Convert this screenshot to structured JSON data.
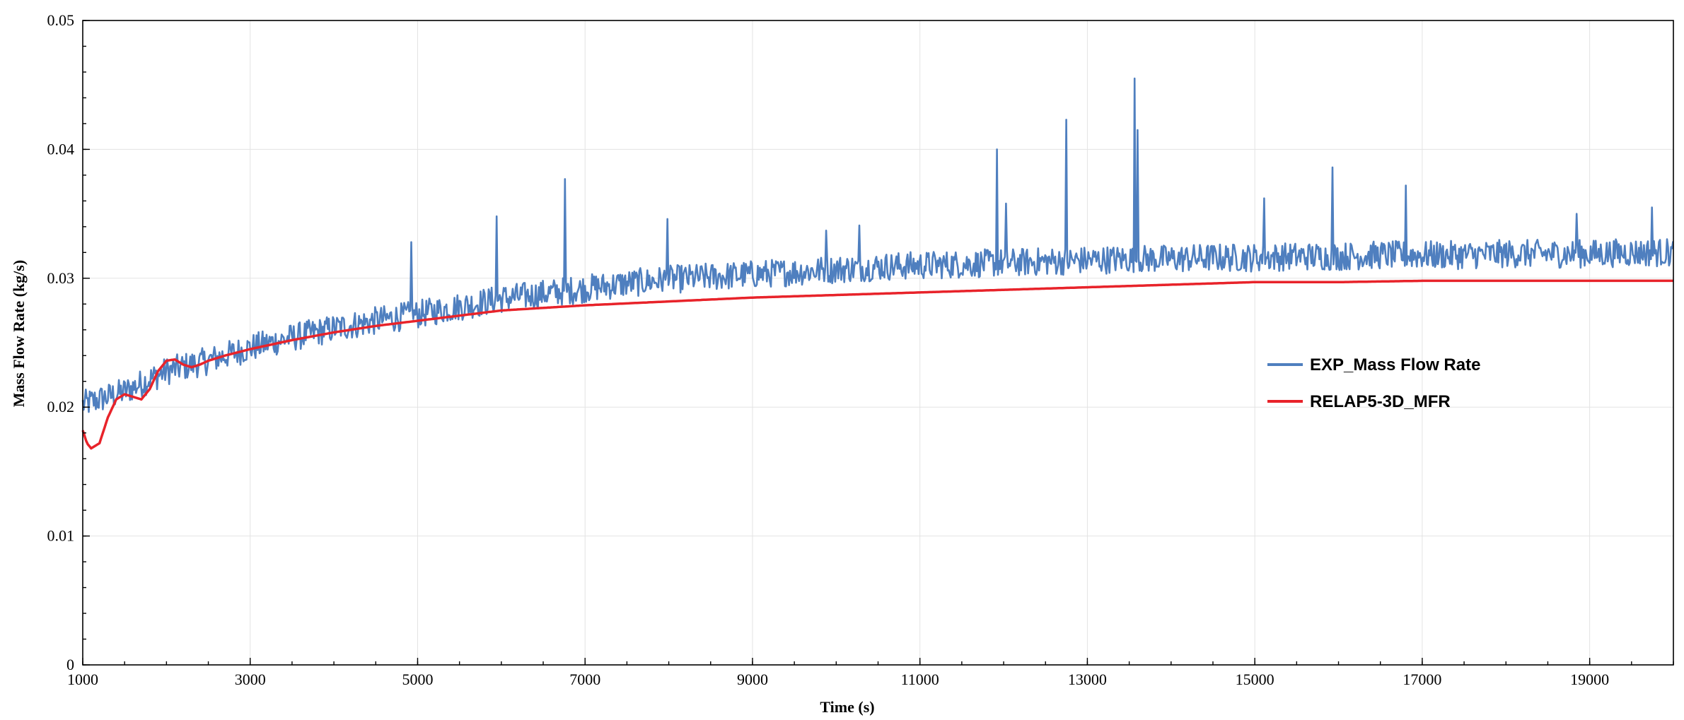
{
  "chart_data": {
    "type": "line",
    "title": "",
    "xlabel": "Time (s)",
    "ylabel": "Mass Flow Rate (kg/s)",
    "xlim": [
      1000,
      20000
    ],
    "ylim": [
      0,
      0.05
    ],
    "x_ticks": [
      1000,
      3000,
      5000,
      7000,
      9000,
      11000,
      13000,
      15000,
      17000,
      19000
    ],
    "x_tick_labels": [
      "1000",
      "3000",
      "5000",
      "7000",
      "9000",
      "11000",
      "13000",
      "15000",
      "17000",
      "19000"
    ],
    "y_ticks": [
      0,
      0.01,
      0.02,
      0.03,
      0.04,
      0.05
    ],
    "y_tick_labels": [
      "0",
      "0.01",
      "0.02",
      "0.03",
      "0.04",
      "0.05"
    ],
    "grid": "on",
    "legend_position": "right",
    "series": [
      {
        "name": "EXP_Mass Flow Rate",
        "color": "#4f7fbf",
        "x": [
          1000,
          1500,
          2000,
          2500,
          3000,
          3500,
          4000,
          4500,
          5000,
          5500,
          6000,
          6500,
          7000,
          7500,
          8000,
          8500,
          9000,
          9500,
          10000,
          10500,
          11000,
          11500,
          12000,
          12500,
          13000,
          13500,
          14000,
          14500,
          15000,
          15500,
          16000,
          16500,
          17000,
          17500,
          18000,
          18500,
          19000,
          19500,
          20000
        ],
        "y": [
          0.0202,
          0.0212,
          0.0228,
          0.0236,
          0.0246,
          0.0254,
          0.0261,
          0.0267,
          0.0272,
          0.0278,
          0.0284,
          0.0288,
          0.0292,
          0.0296,
          0.0299,
          0.0301,
          0.0303,
          0.0305,
          0.0307,
          0.0309,
          0.031,
          0.0311,
          0.0312,
          0.0313,
          0.0314,
          0.0315,
          0.0315,
          0.0316,
          0.0316,
          0.0317,
          0.0317,
          0.0318,
          0.0318,
          0.0318,
          0.0319,
          0.0319,
          0.0319,
          0.032,
          0.032
        ],
        "noise": 0.0011,
        "spikes": [
          {
            "x": 4920,
            "y": 0.0328
          },
          {
            "x": 5950,
            "y": 0.0348
          },
          {
            "x": 6760,
            "y": 0.0377
          },
          {
            "x": 7990,
            "y": 0.0346
          },
          {
            "x": 9880,
            "y": 0.0337
          },
          {
            "x": 10280,
            "y": 0.0341
          },
          {
            "x": 11920,
            "y": 0.04
          },
          {
            "x": 12030,
            "y": 0.0358
          },
          {
            "x": 12750,
            "y": 0.0423
          },
          {
            "x": 13570,
            "y": 0.0455
          },
          {
            "x": 13600,
            "y": 0.0415
          },
          {
            "x": 15110,
            "y": 0.0362
          },
          {
            "x": 15930,
            "y": 0.0386
          },
          {
            "x": 16810,
            "y": 0.0372
          },
          {
            "x": 18850,
            "y": 0.035
          },
          {
            "x": 19740,
            "y": 0.0355
          }
        ]
      },
      {
        "name": "RELAP5-3D_MFR",
        "color": "#e8232a",
        "x": [
          1000,
          1050,
          1100,
          1200,
          1300,
          1400,
          1500,
          1600,
          1700,
          1800,
          1900,
          2000,
          2100,
          2200,
          2300,
          2400,
          2500,
          2700,
          3000,
          3500,
          4000,
          4500,
          5000,
          5500,
          6000,
          7000,
          8000,
          9000,
          10000,
          11000,
          12000,
          13000,
          14000,
          15000,
          16000,
          17000,
          18000,
          19000,
          20000
        ],
        "y": [
          0.0182,
          0.0172,
          0.0168,
          0.0172,
          0.0192,
          0.0206,
          0.021,
          0.0208,
          0.0206,
          0.0214,
          0.0228,
          0.0236,
          0.0237,
          0.0233,
          0.0231,
          0.0233,
          0.0236,
          0.024,
          0.0245,
          0.0252,
          0.0258,
          0.0263,
          0.0267,
          0.0271,
          0.0275,
          0.0279,
          0.0282,
          0.0285,
          0.0287,
          0.0289,
          0.0291,
          0.0293,
          0.0295,
          0.0297,
          0.0297,
          0.0298,
          0.0298,
          0.0298,
          0.0298
        ]
      }
    ]
  }
}
